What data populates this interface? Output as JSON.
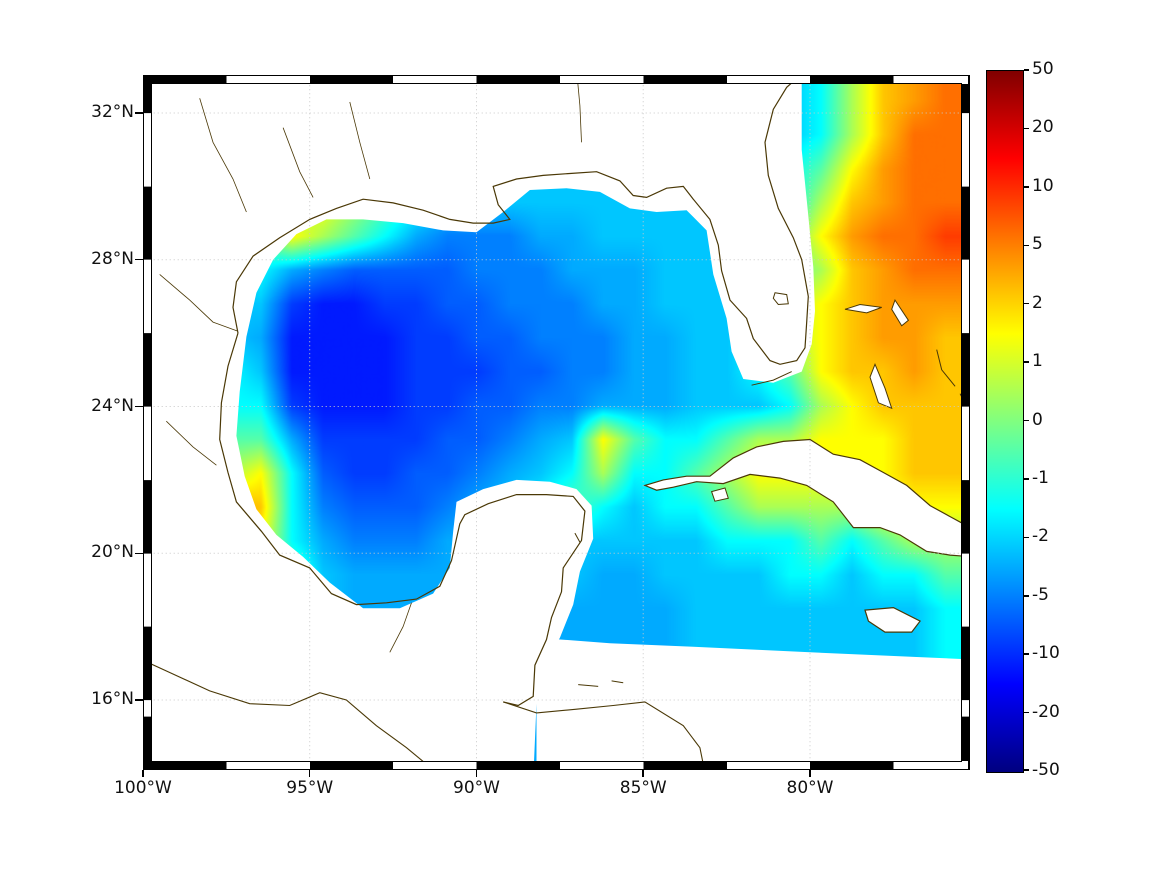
{
  "figure": {
    "background": "#ffffff"
  },
  "colors": {
    "coastline": "#4a3806",
    "gridline": "#c9c9c9",
    "frame": "#000000",
    "land": "#ffffff"
  },
  "axes": {
    "x_ticks": [
      {
        "label": "100°W",
        "lon": 100
      },
      {
        "label": "95°W",
        "lon": 95
      },
      {
        "label": "90°W",
        "lon": 90
      },
      {
        "label": "85°W",
        "lon": 85
      },
      {
        "label": "80°W",
        "lon": 80
      }
    ],
    "y_ticks": [
      {
        "label": "32°N",
        "lat": 32
      },
      {
        "label": "28°N",
        "lat": 28
      },
      {
        "label": "24°N",
        "lat": 24
      },
      {
        "label": "20°N",
        "lat": 20
      },
      {
        "label": "16°N",
        "lat": 16
      }
    ],
    "grid_lons": [
      100,
      95,
      90,
      85,
      80
    ],
    "grid_lats": [
      16,
      20,
      24,
      28,
      32
    ]
  },
  "colorbar": {
    "tick_labels": [
      "50",
      "20",
      "10",
      "5",
      "2",
      "1",
      "0",
      "-1",
      "-2",
      "-5",
      "-10",
      "-20",
      "-50"
    ],
    "tick_values": [
      50,
      20,
      10,
      5,
      2,
      1,
      0,
      -1,
      -2,
      -5,
      -10,
      -20,
      -50
    ]
  },
  "chart_data": {
    "type": "heatmap",
    "colormap": "jet",
    "scale_ticks_nonlinear": [
      -50,
      -20,
      -10,
      -5,
      -2,
      -1,
      0,
      1,
      2,
      5,
      10,
      20,
      50
    ],
    "lon_extent_w": [
      100,
      75.5
    ],
    "lat_extent_n": [
      14.3,
      32.8
    ],
    "grid": {
      "ncols": 26,
      "nrows": 20,
      "levels": {
        "a": -12,
        "b": -9,
        "c": -7,
        "d": -5,
        "e": -3.5,
        "f": -2.5,
        "g": -1.5,
        "h": -0.5,
        "i": 0.5,
        "j": 1.5,
        "k": 2.5,
        "l": 4,
        "m": 6,
        "n": 9
      },
      "rows": [
        "fffffffffffffffffffffgiklm",
        "fffffffffffffffffffffgikmm",
        "ffffffffffffffffffffghjlmm",
        "ffffijihgfffffffffffgiklmm",
        "fffhjihgedddeefffffghjlmmn",
        "fffgedccccdddeeefffghiklmm",
        "ffffbaabbccdddeefffgijklll",
        "fffeaaaabbccdddeeffgijkllk",
        "gggfaaaabbbccddeeffghjkklk",
        "ggggbaaabbccddeeefffgijkkk",
        "hhhhebbbbccdefjhgghiijjjkk",
        "iiijgcbbccdefgigghijjjjjkk",
        "kllkgdcccdefghgfgghiiiijjj",
        "klljgedddeefffffffggghghii",
        "ijjihfeeeeffffeeffffggfggh",
        "hhhgffeeeeeeeeeeeffffffffg",
        "hhhgffeeeeeeeeeeeffffffffg",
        "gggggfeeeeeeeeeeeffffffffg",
        "gggggfeeeeeeeeeeeffffffffg",
        "gggggfeeeeeeeeeeeffffffffg"
      ]
    },
    "geometry": {
      "land_mask": [
        [
          100.4,
          33.3
        ],
        [
          80.25,
          33.3
        ],
        [
          80.25,
          31.0
        ],
        [
          80.05,
          29.2
        ],
        [
          79.9,
          27.8
        ],
        [
          79.85,
          26.6
        ],
        [
          79.95,
          25.7
        ],
        [
          80.25,
          24.95
        ],
        [
          81.1,
          24.65
        ],
        [
          82.0,
          24.75
        ],
        [
          82.35,
          25.5
        ],
        [
          82.5,
          26.4
        ],
        [
          82.9,
          27.6
        ],
        [
          83.1,
          28.8
        ],
        [
          83.7,
          29.35
        ],
        [
          84.6,
          29.3
        ],
        [
          85.4,
          29.4
        ],
        [
          86.3,
          29.85
        ],
        [
          87.3,
          29.95
        ],
        [
          88.4,
          29.9
        ],
        [
          89.2,
          29.3
        ],
        [
          90.0,
          28.75
        ],
        [
          91.0,
          28.8
        ],
        [
          92.2,
          29.0
        ],
        [
          93.4,
          29.1
        ],
        [
          94.5,
          29.1
        ],
        [
          95.4,
          28.7
        ],
        [
          96.1,
          28.0
        ],
        [
          96.6,
          27.1
        ],
        [
          96.9,
          25.9
        ],
        [
          97.1,
          24.4
        ],
        [
          97.2,
          23.2
        ],
        [
          96.95,
          22.1
        ],
        [
          96.6,
          21.2
        ],
        [
          96.0,
          20.5
        ],
        [
          95.2,
          19.9
        ],
        [
          94.4,
          19.2
        ],
        [
          93.4,
          18.5
        ],
        [
          92.3,
          18.5
        ],
        [
          91.3,
          18.9
        ],
        [
          90.8,
          19.6
        ],
        [
          90.7,
          20.6
        ],
        [
          90.6,
          21.4
        ],
        [
          89.8,
          21.75
        ],
        [
          88.8,
          22.0
        ],
        [
          87.8,
          21.95
        ],
        [
          87.0,
          21.75
        ],
        [
          86.55,
          21.3
        ],
        [
          86.5,
          20.4
        ],
        [
          86.9,
          19.5
        ],
        [
          87.1,
          18.6
        ],
        [
          87.5,
          17.7
        ],
        [
          88.0,
          16.9
        ],
        [
          88.2,
          15.9
        ],
        [
          88.3,
          13.8
        ],
        [
          100.4,
          13.8
        ]
      ],
      "nodata_mask": [
        [
          88.2,
          17.7
        ],
        [
          86.0,
          17.55
        ],
        [
          83.5,
          17.45
        ],
        [
          80.0,
          17.3
        ],
        [
          75.0,
          17.1
        ],
        [
          75.0,
          13.8
        ],
        [
          88.2,
          13.8
        ]
      ],
      "cuba": [
        [
          84.95,
          21.85
        ],
        [
          84.4,
          22.0
        ],
        [
          83.7,
          22.1
        ],
        [
          83.0,
          22.1
        ],
        [
          82.3,
          22.6
        ],
        [
          81.6,
          22.9
        ],
        [
          80.8,
          23.05
        ],
        [
          80.0,
          23.1
        ],
        [
          79.3,
          22.7
        ],
        [
          78.5,
          22.55
        ],
        [
          77.8,
          22.2
        ],
        [
          77.1,
          21.85
        ],
        [
          76.4,
          21.3
        ],
        [
          75.8,
          21.0
        ],
        [
          75.1,
          20.65
        ],
        [
          75.1,
          19.9
        ],
        [
          75.8,
          19.95
        ],
        [
          76.5,
          20.05
        ],
        [
          77.3,
          20.5
        ],
        [
          77.9,
          20.7
        ],
        [
          78.7,
          20.7
        ],
        [
          79.3,
          21.4
        ],
        [
          80.1,
          21.85
        ],
        [
          80.9,
          22.05
        ],
        [
          81.8,
          22.15
        ],
        [
          82.6,
          21.9
        ],
        [
          83.4,
          21.95
        ],
        [
          84.1,
          21.8
        ],
        [
          84.6,
          21.72
        ]
      ],
      "isla_juventud": [
        [
          82.95,
          21.68
        ],
        [
          82.55,
          21.78
        ],
        [
          82.45,
          21.5
        ],
        [
          82.85,
          21.42
        ]
      ],
      "jamaica": [
        [
          78.35,
          18.45
        ],
        [
          77.5,
          18.52
        ],
        [
          76.7,
          18.15
        ],
        [
          76.95,
          17.85
        ],
        [
          77.75,
          17.85
        ],
        [
          78.25,
          18.15
        ]
      ],
      "andros": [
        [
          78.05,
          25.15
        ],
        [
          77.75,
          24.5
        ],
        [
          77.55,
          23.95
        ],
        [
          77.95,
          24.1
        ],
        [
          78.2,
          24.8
        ]
      ],
      "grand_bahama": [
        [
          78.95,
          26.65
        ],
        [
          78.3,
          26.55
        ],
        [
          77.85,
          26.7
        ],
        [
          78.5,
          26.78
        ]
      ],
      "abaco": [
        [
          77.45,
          26.9
        ],
        [
          77.05,
          26.35
        ],
        [
          77.25,
          26.2
        ],
        [
          77.55,
          26.65
        ]
      ],
      "coast_us": [
        [
          97.15,
          26.0
        ],
        [
          97.3,
          26.7
        ],
        [
          97.2,
          27.4
        ],
        [
          96.7,
          28.1
        ],
        [
          95.9,
          28.6
        ],
        [
          95.0,
          29.1
        ],
        [
          94.2,
          29.4
        ],
        [
          93.4,
          29.65
        ],
        [
          92.5,
          29.55
        ],
        [
          91.6,
          29.35
        ],
        [
          90.8,
          29.1
        ],
        [
          90.1,
          29.0
        ],
        [
          89.5,
          29.0
        ],
        [
          89.0,
          29.1
        ],
        [
          89.35,
          29.5
        ],
        [
          89.5,
          30.0
        ],
        [
          88.8,
          30.2
        ],
        [
          88.0,
          30.3
        ],
        [
          87.2,
          30.35
        ],
        [
          86.4,
          30.4
        ],
        [
          85.7,
          30.15
        ],
        [
          85.3,
          29.75
        ],
        [
          84.9,
          29.7
        ],
        [
          84.3,
          29.95
        ],
        [
          83.8,
          30.0
        ],
        [
          83.5,
          29.65
        ],
        [
          83.0,
          29.1
        ],
        [
          82.75,
          28.4
        ],
        [
          82.65,
          27.7
        ],
        [
          82.4,
          26.9
        ],
        [
          81.9,
          26.4
        ],
        [
          81.7,
          25.85
        ],
        [
          81.2,
          25.25
        ],
        [
          80.9,
          25.15
        ],
        [
          80.4,
          25.25
        ],
        [
          80.15,
          25.6
        ],
        [
          80.1,
          26.3
        ],
        [
          80.05,
          27.0
        ],
        [
          80.25,
          28.0
        ],
        [
          80.5,
          28.6
        ],
        [
          80.95,
          29.4
        ],
        [
          81.25,
          30.3
        ],
        [
          81.35,
          31.2
        ],
        [
          81.1,
          32.1
        ],
        [
          80.7,
          32.7
        ],
        [
          80.2,
          33.1
        ],
        [
          79.9,
          33.3
        ]
      ],
      "coast_mexico": [
        [
          97.15,
          26.0
        ],
        [
          97.45,
          25.1
        ],
        [
          97.65,
          24.1
        ],
        [
          97.7,
          23.1
        ],
        [
          97.45,
          22.2
        ],
        [
          97.2,
          21.4
        ],
        [
          96.45,
          20.6
        ],
        [
          95.9,
          19.95
        ],
        [
          95.0,
          19.6
        ],
        [
          94.35,
          18.9
        ],
        [
          93.6,
          18.6
        ],
        [
          92.7,
          18.65
        ],
        [
          91.8,
          18.75
        ],
        [
          91.1,
          19.1
        ],
        [
          90.75,
          19.8
        ],
        [
          90.5,
          20.8
        ],
        [
          90.35,
          21.05
        ],
        [
          89.65,
          21.35
        ],
        [
          88.8,
          21.6
        ],
        [
          87.9,
          21.6
        ],
        [
          87.1,
          21.55
        ],
        [
          86.75,
          21.15
        ],
        [
          86.85,
          20.35
        ],
        [
          87.4,
          19.6
        ],
        [
          87.45,
          18.95
        ],
        [
          87.75,
          18.25
        ],
        [
          87.9,
          17.65
        ],
        [
          88.25,
          16.95
        ],
        [
          88.3,
          16.1
        ],
        [
          88.75,
          15.85
        ],
        [
          89.2,
          15.95
        ]
      ],
      "coast_pacific": [
        [
          100.4,
          17.25
        ],
        [
          99.2,
          16.75
        ],
        [
          98.0,
          16.25
        ],
        [
          96.8,
          15.9
        ],
        [
          95.6,
          15.85
        ],
        [
          94.7,
          16.2
        ],
        [
          93.9,
          16.0
        ],
        [
          93.0,
          15.3
        ],
        [
          92.1,
          14.7
        ],
        [
          91.3,
          14.1
        ],
        [
          90.8,
          13.8
        ]
      ],
      "coast_central_america": [
        [
          89.2,
          15.95
        ],
        [
          88.2,
          15.65
        ],
        [
          87.0,
          15.75
        ],
        [
          85.9,
          15.85
        ],
        [
          84.95,
          15.95
        ],
        [
          83.8,
          15.3
        ],
        [
          83.3,
          14.7
        ],
        [
          83.1,
          13.8
        ]
      ],
      "florida_keys": [
        [
          80.55,
          24.95
        ],
        [
          81.1,
          24.72
        ],
        [
          81.75,
          24.58
        ]
      ],
      "eleuthera": [
        [
          76.2,
          25.55
        ],
        [
          76.05,
          25.0
        ],
        [
          75.65,
          24.55
        ]
      ],
      "cat_island": [
        [
          75.5,
          24.35
        ],
        [
          75.25,
          23.9
        ]
      ],
      "long_island": [
        [
          75.35,
          23.45
        ],
        [
          75.05,
          23.05
        ]
      ],
      "roatan": [
        [
          86.95,
          16.42
        ],
        [
          86.35,
          16.37
        ]
      ],
      "guanaja": [
        [
          85.95,
          16.52
        ],
        [
          85.6,
          16.47
        ]
      ],
      "cozumel": [
        [
          87.05,
          20.55
        ],
        [
          86.9,
          20.3
        ]
      ],
      "lake_okeechobee": [
        [
          81.05,
          27.1
        ],
        [
          80.7,
          27.05
        ],
        [
          80.65,
          26.8
        ],
        [
          80.95,
          26.78
        ],
        [
          81.1,
          26.95
        ]
      ],
      "rivers": [
        [
          [
            99.5,
            27.6
          ],
          [
            98.6,
            26.9
          ],
          [
            97.9,
            26.3
          ],
          [
            97.15,
            26.05
          ]
        ],
        [
          [
            98.3,
            32.4
          ],
          [
            97.9,
            31.2
          ],
          [
            97.3,
            30.2
          ],
          [
            96.9,
            29.3
          ]
        ],
        [
          [
            95.8,
            31.6
          ],
          [
            95.3,
            30.4
          ],
          [
            94.9,
            29.7
          ]
        ],
        [
          [
            93.8,
            32.3
          ],
          [
            93.5,
            31.2
          ],
          [
            93.2,
            30.2
          ]
        ],
        [
          [
            87.0,
            33.2
          ],
          [
            86.9,
            32.2
          ],
          [
            86.85,
            31.2
          ]
        ],
        [
          [
            99.3,
            23.6
          ],
          [
            98.5,
            22.9
          ],
          [
            97.8,
            22.4
          ]
        ],
        [
          [
            92.6,
            17.3
          ],
          [
            92.2,
            18.0
          ],
          [
            91.95,
            18.65
          ]
        ]
      ]
    }
  }
}
